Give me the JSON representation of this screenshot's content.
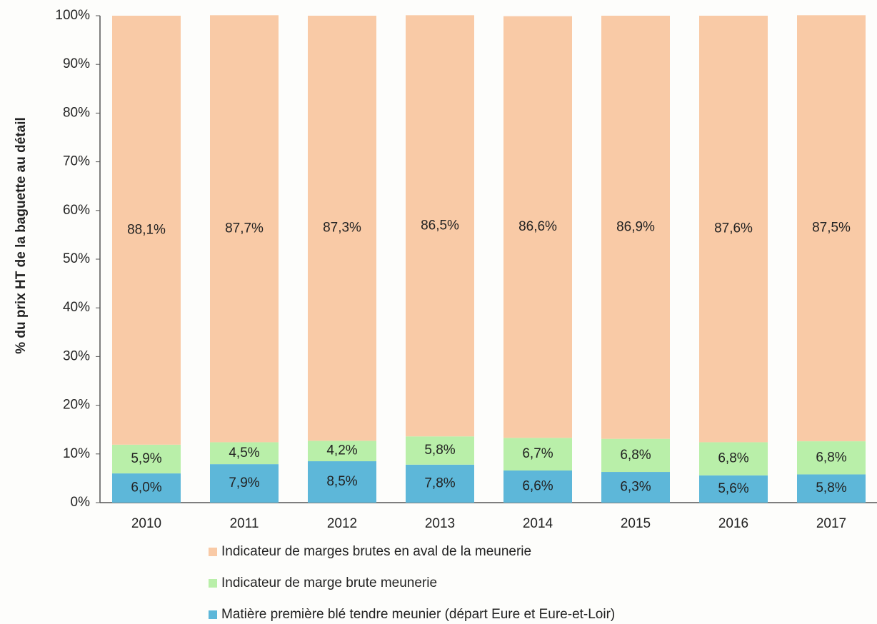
{
  "chart_data": {
    "type": "stacked_bar",
    "y_label": "% du prix HT de la  baguette au détail",
    "categories": [
      "2010",
      "2011",
      "2012",
      "2013",
      "2014",
      "2015",
      "2016",
      "2017"
    ],
    "series": [
      {
        "name": "Indicateur de marges brutes en aval de la meunerie",
        "color": "#f9caa6",
        "values": [
          88.1,
          87.7,
          87.3,
          86.5,
          86.6,
          86.9,
          87.6,
          87.5
        ],
        "value_labels": [
          "88,1%",
          "87,7%",
          "87,3%",
          "86,5%",
          "86,6%",
          "86,9%",
          "87,6%",
          "87,5%"
        ]
      },
      {
        "name": "Indicateur de marge brute meunerie",
        "color": "#b9efa9",
        "values": [
          5.9,
          4.5,
          4.2,
          5.8,
          6.7,
          6.8,
          6.8,
          6.8
        ],
        "value_labels": [
          "5,9%",
          "4,5%",
          "4,2%",
          "5,8%",
          "6,7%",
          "6,8%",
          "6,8%",
          "6,8%"
        ]
      },
      {
        "name": "Matière première blé tendre meunier (départ Eure et Eure-et-Loir)",
        "color": "#5db7d9",
        "values": [
          6.0,
          7.9,
          8.5,
          7.8,
          6.6,
          6.3,
          5.6,
          5.8
        ],
        "value_labels": [
          "6,0%",
          "7,9%",
          "8,5%",
          "7,8%",
          "6,6%",
          "6,3%",
          "5,6%",
          "5,8%"
        ]
      }
    ],
    "ylim": [
      0,
      100
    ],
    "yticks": [
      {
        "value": 0,
        "label": "0%"
      },
      {
        "value": 10,
        "label": "10%"
      },
      {
        "value": 20,
        "label": "20%"
      },
      {
        "value": 30,
        "label": "30%"
      },
      {
        "value": 40,
        "label": "40%"
      },
      {
        "value": 50,
        "label": "50%"
      },
      {
        "value": 60,
        "label": "60%"
      },
      {
        "value": 70,
        "label": "70%"
      },
      {
        "value": 80,
        "label": "80%"
      },
      {
        "value": 90,
        "label": "90%"
      },
      {
        "value": 100,
        "label": "100%"
      }
    ]
  }
}
